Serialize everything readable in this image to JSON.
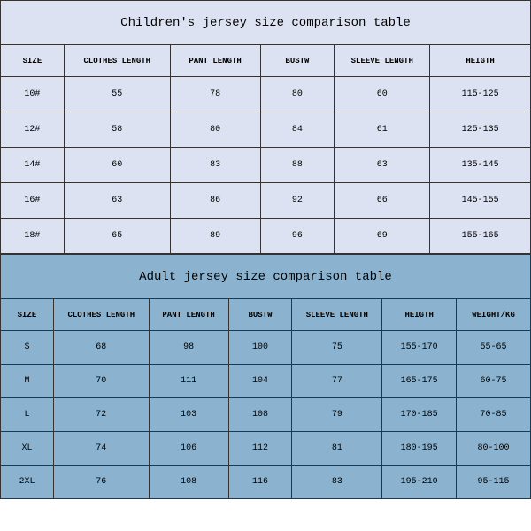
{
  "children": {
    "title": "Children's jersey size comparison table",
    "columns": [
      "SIZE",
      "CLOTHES LENGTH",
      "PANT LENGTH",
      "BUSTW",
      "SLEEVE LENGTH",
      "HEIGTH"
    ],
    "col_widths": [
      "12%",
      "20%",
      "17%",
      "14%",
      "18%",
      "19%"
    ],
    "rows": [
      [
        "10#",
        "55",
        "78",
        "80",
        "60",
        "115-125"
      ],
      [
        "12#",
        "58",
        "80",
        "84",
        "61",
        "125-135"
      ],
      [
        "14#",
        "60",
        "83",
        "88",
        "63",
        "135-145"
      ],
      [
        "16#",
        "63",
        "86",
        "92",
        "66",
        "145-155"
      ],
      [
        "18#",
        "65",
        "89",
        "96",
        "69",
        "155-165"
      ]
    ],
    "bg_color": "#dde2f2",
    "border_color": "#333333",
    "title_fontsize": 14,
    "header_fontsize": 9,
    "cell_fontsize": 10
  },
  "adult": {
    "title": "Adult jersey size comparison table",
    "columns": [
      "SIZE",
      "CLOTHES LENGTH",
      "PANT LENGTH",
      "BUSTW",
      "SLEEVE LENGTH",
      "HEIGTH",
      "WEIGHT/KG"
    ],
    "col_widths": [
      "10%",
      "18%",
      "15%",
      "12%",
      "17%",
      "14%",
      "14%"
    ],
    "rows": [
      [
        "S",
        "68",
        "98",
        "100",
        "75",
        "155-170",
        "55-65"
      ],
      [
        "M",
        "70",
        "111",
        "104",
        "77",
        "165-175",
        "60-75"
      ],
      [
        "L",
        "72",
        "103",
        "108",
        "79",
        "170-185",
        "70-85"
      ],
      [
        "XL",
        "74",
        "106",
        "112",
        "81",
        "180-195",
        "80-100"
      ],
      [
        "2XL",
        "76",
        "108",
        "116",
        "83",
        "195-210",
        "95-115"
      ]
    ],
    "bg_color": "#8bb3cf",
    "border_color": "#333333",
    "title_fontsize": 14,
    "header_fontsize": 9,
    "cell_fontsize": 10
  }
}
